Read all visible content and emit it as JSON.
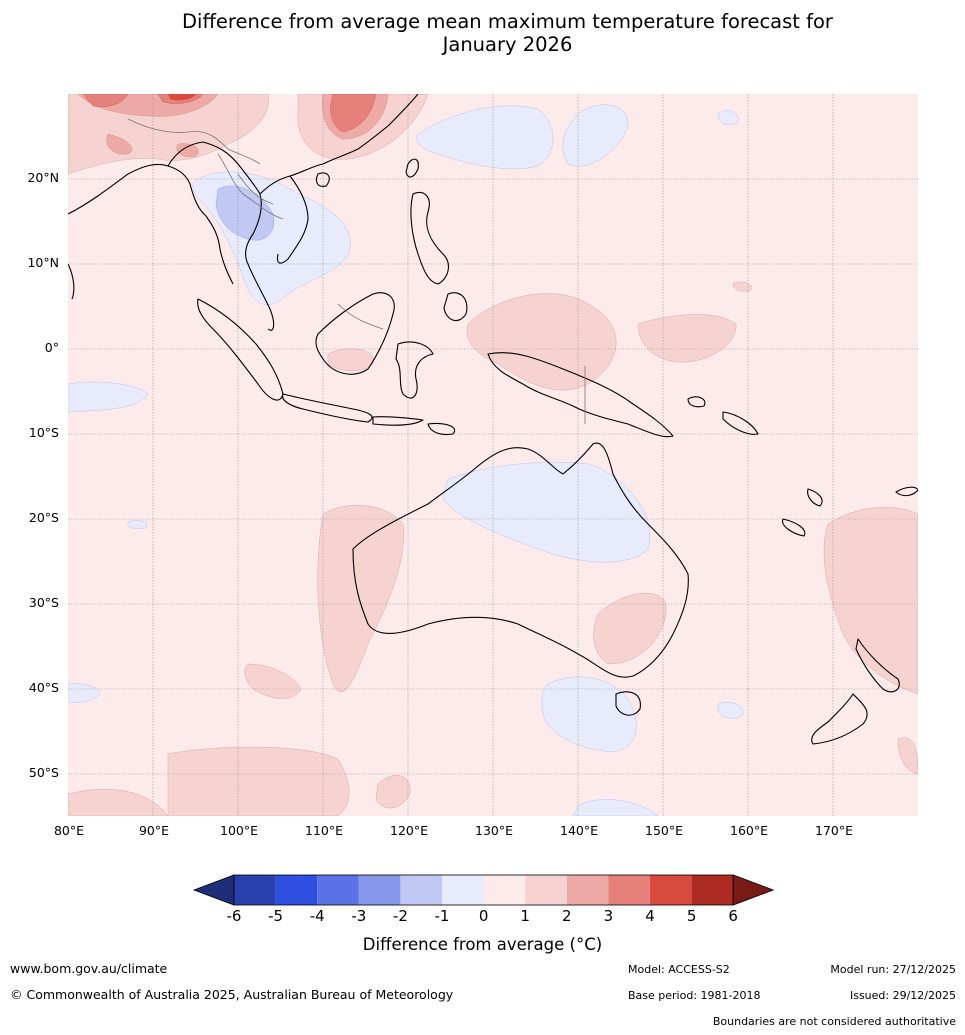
{
  "title": {
    "line1": "Difference from average mean maximum temperature forecast for",
    "line2": "January 2026"
  },
  "map": {
    "latitude_labels": [
      "20°N",
      "10°N",
      "0°",
      "10°S",
      "20°S",
      "30°S",
      "40°S",
      "50°S"
    ],
    "longitude_labels": [
      "80°E",
      "90°E",
      "100°E",
      "110°E",
      "120°E",
      "130°E",
      "140°E",
      "150°E",
      "160°E",
      "170°E"
    ],
    "extent": {
      "lon_min": 80,
      "lon_max": 180,
      "lat_min": -55,
      "lat_max": 30
    }
  },
  "colorbar": {
    "ticks": [
      "-6",
      "-5",
      "-4",
      "-3",
      "-2",
      "-1",
      "0",
      "1",
      "2",
      "3",
      "4",
      "5",
      "6"
    ],
    "colors": [
      "#1f2d7a",
      "#2a3fae",
      "#2f4fe0",
      "#5a72e6",
      "#8797ec",
      "#c2c8f4",
      "#e8ebfb",
      "#fcebea",
      "#f6d3d1",
      "#eeaaa6",
      "#e5807a",
      "#d94a3e",
      "#ad2a22",
      "#781b17"
    ],
    "label": "Difference from average (°C)"
  },
  "footer": {
    "website": "www.bom.gov.au/climate",
    "copyright": "© Commonwealth of Australia 2025, Australian Bureau of Meteorology",
    "model": "Model: ACCESS-S2",
    "base_period": "Base period: 1981-2018",
    "model_run": "Model run: 27/12/2025",
    "issued": "Issued: 29/12/2025",
    "disclaimer": "Boundaries are not considered authoritative"
  }
}
